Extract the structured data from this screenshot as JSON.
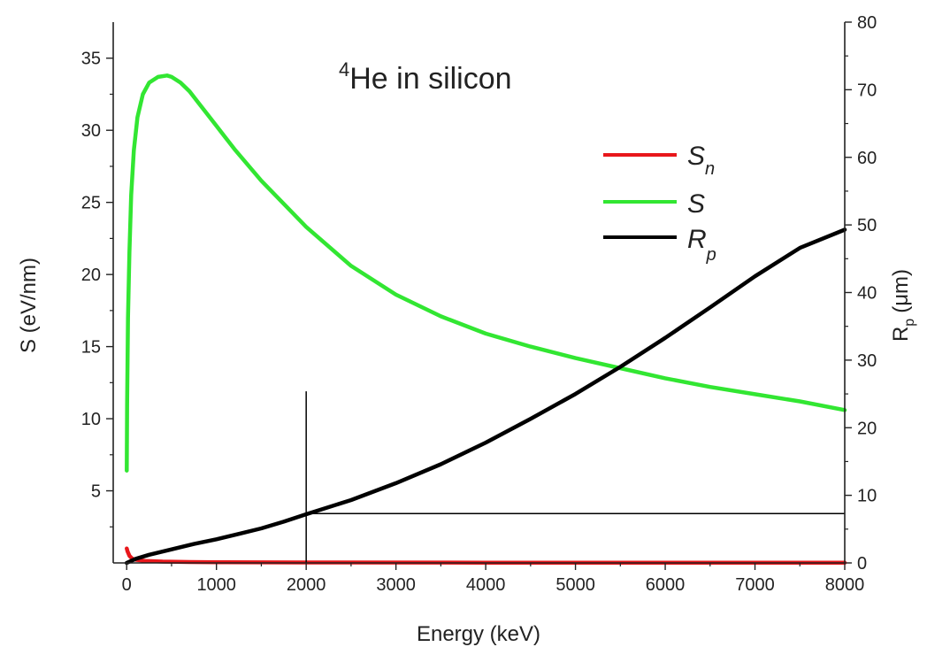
{
  "chart_data": {
    "type": "line",
    "title_superscript": "4",
    "title_text": "He in silicon",
    "xlabel": "Energy (keV)",
    "ylabel_left": "S (eV/nm)",
    "ylabel_right_main": "R",
    "ylabel_right_sub": "p",
    "ylabel_right_unit": "(μm)",
    "xlim": [
      -150,
      8000
    ],
    "ylim_left": [
      0,
      37.5
    ],
    "ylim_right": [
      0,
      80
    ],
    "x_ticks": [
      0,
      1000,
      2000,
      3000,
      4000,
      5000,
      6000,
      7000,
      8000
    ],
    "y_left_ticks": [
      5,
      10,
      15,
      20,
      25,
      30,
      35
    ],
    "y_right_ticks": [
      0,
      10,
      20,
      30,
      40,
      50,
      60,
      70,
      80
    ],
    "grid": false,
    "legend_position": "top-right",
    "series": [
      {
        "name": "S",
        "name_sub": "n",
        "axis": "left",
        "color": "#e8171b",
        "x": [
          1,
          10,
          30,
          60,
          100,
          200,
          400,
          700,
          1000,
          2000,
          4000,
          8000
        ],
        "y": [
          1.0,
          0.8,
          0.5,
          0.3,
          0.22,
          0.14,
          0.09,
          0.06,
          0.05,
          0.03,
          0.02,
          0.01
        ]
      },
      {
        "name": "S",
        "name_sub": "",
        "axis": "left",
        "color": "#32e632",
        "x": [
          1,
          5,
          15,
          30,
          50,
          80,
          120,
          180,
          250,
          350,
          450,
          500,
          600,
          700,
          800,
          1000,
          1200,
          1500,
          2000,
          2500,
          3000,
          3500,
          4000,
          4500,
          5000,
          5500,
          6000,
          6500,
          7000,
          7500,
          8000
        ],
        "y": [
          6.4,
          11.0,
          17.0,
          21.5,
          25.5,
          28.6,
          30.9,
          32.5,
          33.3,
          33.7,
          33.8,
          33.7,
          33.3,
          32.7,
          31.9,
          30.3,
          28.7,
          26.5,
          23.3,
          20.6,
          18.6,
          17.1,
          15.9,
          15.0,
          14.2,
          13.5,
          12.8,
          12.2,
          11.7,
          11.2,
          10.6
        ]
      },
      {
        "name": "R",
        "name_sub": "p",
        "axis": "right",
        "color": "#000000",
        "x": [
          0,
          100,
          250,
          500,
          750,
          1000,
          1250,
          1500,
          1750,
          2000,
          2500,
          3000,
          3500,
          4000,
          4500,
          5000,
          5500,
          6000,
          6500,
          7000,
          7500,
          8000
        ],
        "y": [
          0,
          0.6,
          1.2,
          2.0,
          2.8,
          3.5,
          4.3,
          5.1,
          6.1,
          7.2,
          9.3,
          11.8,
          14.6,
          17.8,
          21.3,
          25.0,
          29.0,
          33.3,
          37.8,
          42.4,
          46.6,
          49.3
        ]
      }
    ],
    "annotation_marker": {
      "vertical_x": 2000,
      "vertical_top_left": 11.9,
      "horizontal_y_right": 7.3,
      "horizontal_x_start": 2000,
      "horizontal_x_end": 8000
    }
  }
}
